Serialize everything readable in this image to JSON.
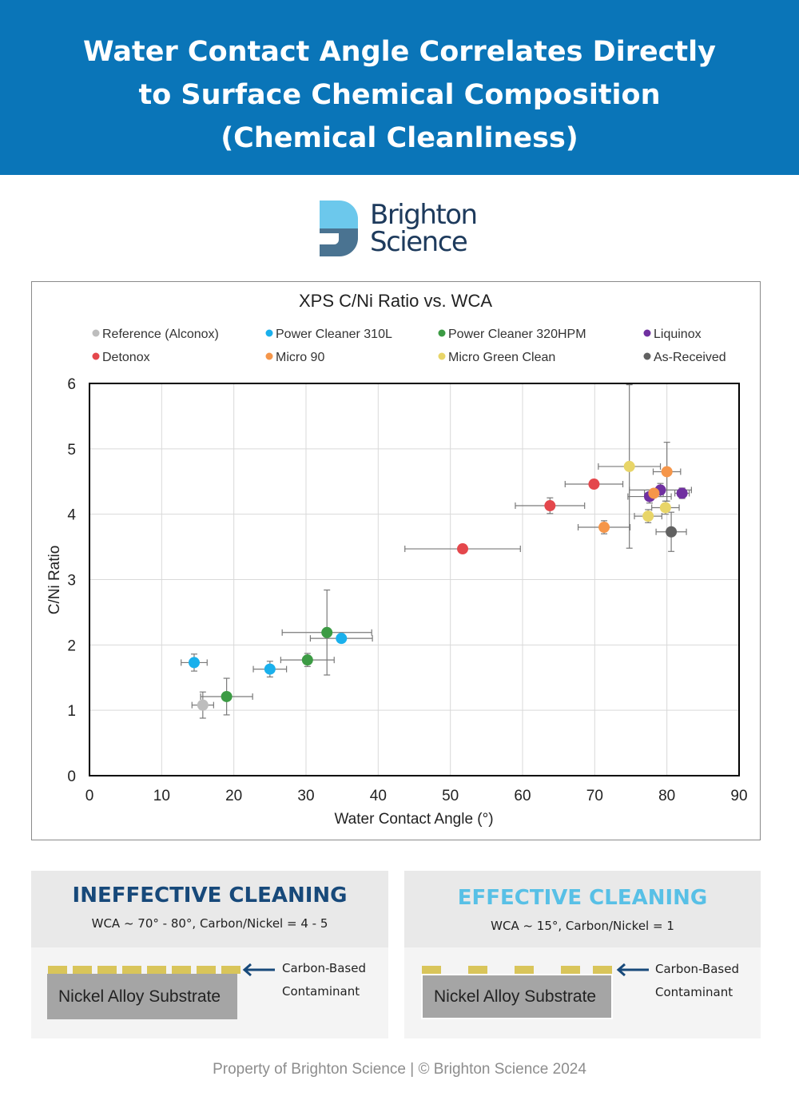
{
  "header": {
    "title_lines": [
      "Water Contact Angle Correlates Directly",
      "to Surface Chemical Composition",
      "(Chemical Cleanliness)"
    ]
  },
  "logo": {
    "line1": "Brighton",
    "line2": "Science",
    "colors": {
      "light": "#6cc8ec",
      "dark": "#4a7391"
    }
  },
  "chart_data": {
    "type": "scatter",
    "title": "XPS C/Ni Ratio vs. WCA",
    "xlabel": "Water Contact Angle (°)",
    "ylabel": "C/Ni Ratio",
    "xlim": [
      0,
      90
    ],
    "ylim": [
      0,
      6
    ],
    "xticks": [
      0,
      10,
      20,
      30,
      40,
      50,
      60,
      70,
      80,
      90
    ],
    "yticks": [
      0,
      1,
      2,
      3,
      4,
      5,
      6
    ],
    "grid": true,
    "legend_position": "top",
    "series": [
      {
        "name": "Reference (Alconox)",
        "color": "#bdbdbd",
        "points": [
          {
            "x": 15.7,
            "y": 1.08,
            "xerr": 1.5,
            "yerr": 0.2
          }
        ]
      },
      {
        "name": "Power Cleaner 310L",
        "color": "#1ab0ec",
        "points": [
          {
            "x": 14.5,
            "y": 1.73,
            "xerr": 1.8,
            "yerr": 0.13
          },
          {
            "x": 25.0,
            "y": 1.63,
            "xerr": 2.3,
            "yerr": 0.12
          },
          {
            "x": 34.9,
            "y": 2.1,
            "xerr": 4.3,
            "yerr": 0.05
          }
        ]
      },
      {
        "name": "Power Cleaner 320HPM",
        "color": "#3c9b44",
        "points": [
          {
            "x": 19.0,
            "y": 1.21,
            "xerr": 3.6,
            "yerr": 0.28
          },
          {
            "x": 30.2,
            "y": 1.77,
            "xerr": 3.7,
            "yerr": 0.1
          },
          {
            "x": 32.9,
            "y": 2.19,
            "xerr": 6.2,
            "yerr": 0.65
          }
        ]
      },
      {
        "name": "Liquinox",
        "color": "#7030a0",
        "points": [
          {
            "x": 77.6,
            "y": 4.27,
            "xerr": 3.0,
            "yerr": 0.1
          },
          {
            "x": 79.1,
            "y": 4.37,
            "xerr": 4.3,
            "yerr": 0.1
          },
          {
            "x": 82.1,
            "y": 4.32,
            "xerr": 1.0,
            "yerr": 0.08
          }
        ]
      },
      {
        "name": "Detonox",
        "color": "#e4474c",
        "points": [
          {
            "x": 51.7,
            "y": 3.47,
            "xerr": 8.0,
            "yerr": 0.05
          },
          {
            "x": 63.8,
            "y": 4.13,
            "xerr": 4.8,
            "yerr": 0.12
          },
          {
            "x": 69.9,
            "y": 4.46,
            "xerr": 4.0,
            "yerr": 0.05
          }
        ]
      },
      {
        "name": "Micro 90",
        "color": "#f5964a",
        "points": [
          {
            "x": 71.3,
            "y": 3.8,
            "xerr": 3.6,
            "yerr": 0.1
          },
          {
            "x": 78.2,
            "y": 4.32,
            "xerr": 1.3,
            "yerr": 0.05
          },
          {
            "x": 80.0,
            "y": 4.65,
            "xerr": 1.9,
            "yerr": 0.45
          }
        ]
      },
      {
        "name": "Micro Green Clean",
        "color": "#e8d568",
        "points": [
          {
            "x": 74.8,
            "y": 4.73,
            "xerr": 4.3,
            "yerr": 1.25
          },
          {
            "x": 77.4,
            "y": 3.97,
            "xerr": 1.9,
            "yerr": 0.1
          },
          {
            "x": 79.8,
            "y": 4.1,
            "xerr": 1.9,
            "yerr": 0.1
          }
        ]
      },
      {
        "name": "As-Received",
        "color": "#616161",
        "points": [
          {
            "x": 80.6,
            "y": 3.73,
            "xerr": 2.1,
            "yerr": 0.3
          }
        ]
      }
    ]
  },
  "panels": {
    "ineffective": {
      "title": "INEFFECTIVE CLEANING",
      "title_color": "#17497a",
      "subtitle": "WCA ~ 70° - 80°, Carbon/Nickel = 4 - 5",
      "substrate_label": "Nickel Alloy Substrate",
      "contaminant_line1": "Carbon-Based",
      "contaminant_line2": "Contaminant"
    },
    "effective": {
      "title": "EFFECTIVE CLEANING",
      "title_color": "#58c0e6",
      "subtitle": "WCA ~ 15°, Carbon/Nickel = 1",
      "substrate_label": "Nickel Alloy Substrate",
      "contaminant_line1": "Carbon-Based",
      "contaminant_line2": "Contaminant"
    }
  },
  "footer": {
    "text": "Property of Brighton Science  |  © Brighton Science 2024"
  }
}
